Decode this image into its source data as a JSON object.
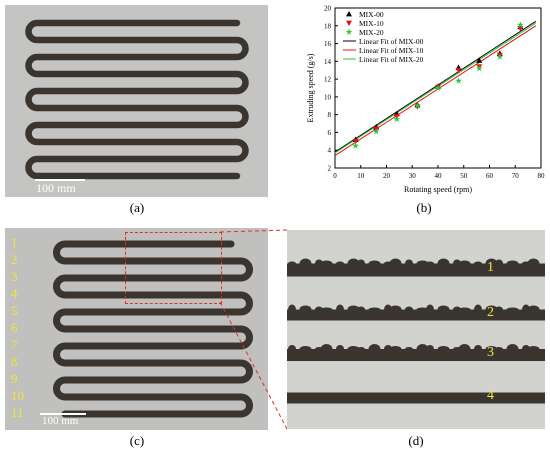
{
  "panels": {
    "a": {
      "caption": "(a)",
      "scale_label": "100 mm"
    },
    "b": {
      "caption": "(b)"
    },
    "c": {
      "caption": "(c)",
      "scale_label": "100 mm",
      "line_numbers": [
        "1",
        "2",
        "3",
        "4",
        "5",
        "6",
        "7",
        "8",
        "9",
        "10",
        "11"
      ]
    },
    "d": {
      "caption": "(d)",
      "line_numbers": [
        "1",
        "2",
        "3",
        "4"
      ]
    }
  },
  "colors": {
    "label_yellow": "#f2e43a",
    "highlight_red": "#e03030",
    "filament": "#3b3530"
  },
  "chart_data": {
    "type": "scatter",
    "xlabel": "Rotating speed (rpm)",
    "ylabel": "Extruding speed (g/s)",
    "xlim": [
      0,
      80
    ],
    "ylim": [
      2,
      20
    ],
    "xticks": [
      0,
      10,
      20,
      30,
      40,
      50,
      60,
      70,
      80
    ],
    "yticks": [
      2,
      4,
      6,
      8,
      10,
      12,
      14,
      16,
      18,
      20
    ],
    "legend_position": "top-left",
    "series": [
      {
        "name": "MIX-00",
        "marker": "triangle",
        "color": "#000000",
        "x": [
          8,
          16,
          24,
          32,
          40,
          48,
          56,
          64,
          72
        ],
        "y": [
          5.2,
          6.6,
          8.1,
          9.1,
          11.2,
          13.3,
          14.1,
          14.9,
          17.9
        ]
      },
      {
        "name": "MIX-10",
        "marker": "triangle-down",
        "color": "#e8101a",
        "x": [
          8,
          16,
          24,
          32,
          40,
          48,
          56,
          64,
          72
        ],
        "y": [
          5.0,
          6.4,
          7.8,
          8.9,
          11.1,
          13.0,
          13.4,
          14.7,
          17.7
        ]
      },
      {
        "name": "MIX-20",
        "marker": "star",
        "color": "#22cc33",
        "x": [
          8,
          16,
          24,
          32,
          40,
          48,
          56,
          64,
          72
        ],
        "y": [
          4.5,
          6.1,
          7.5,
          9.0,
          11.0,
          11.8,
          13.2,
          14.5,
          18.1
        ]
      }
    ],
    "fits": [
      {
        "name": "Linear Fit of MIX-00",
        "color": "#000000",
        "x": [
          0,
          78
        ],
        "y": [
          3.8,
          18.5
        ]
      },
      {
        "name": "Linear Fit of MIX-10",
        "color": "#e8101a",
        "x": [
          0,
          78
        ],
        "y": [
          3.4,
          18.0
        ]
      },
      {
        "name": "Linear Fit of MIX-20",
        "color": "#22cc33",
        "x": [
          0,
          78
        ],
        "y": [
          3.7,
          18.3
        ]
      }
    ]
  }
}
